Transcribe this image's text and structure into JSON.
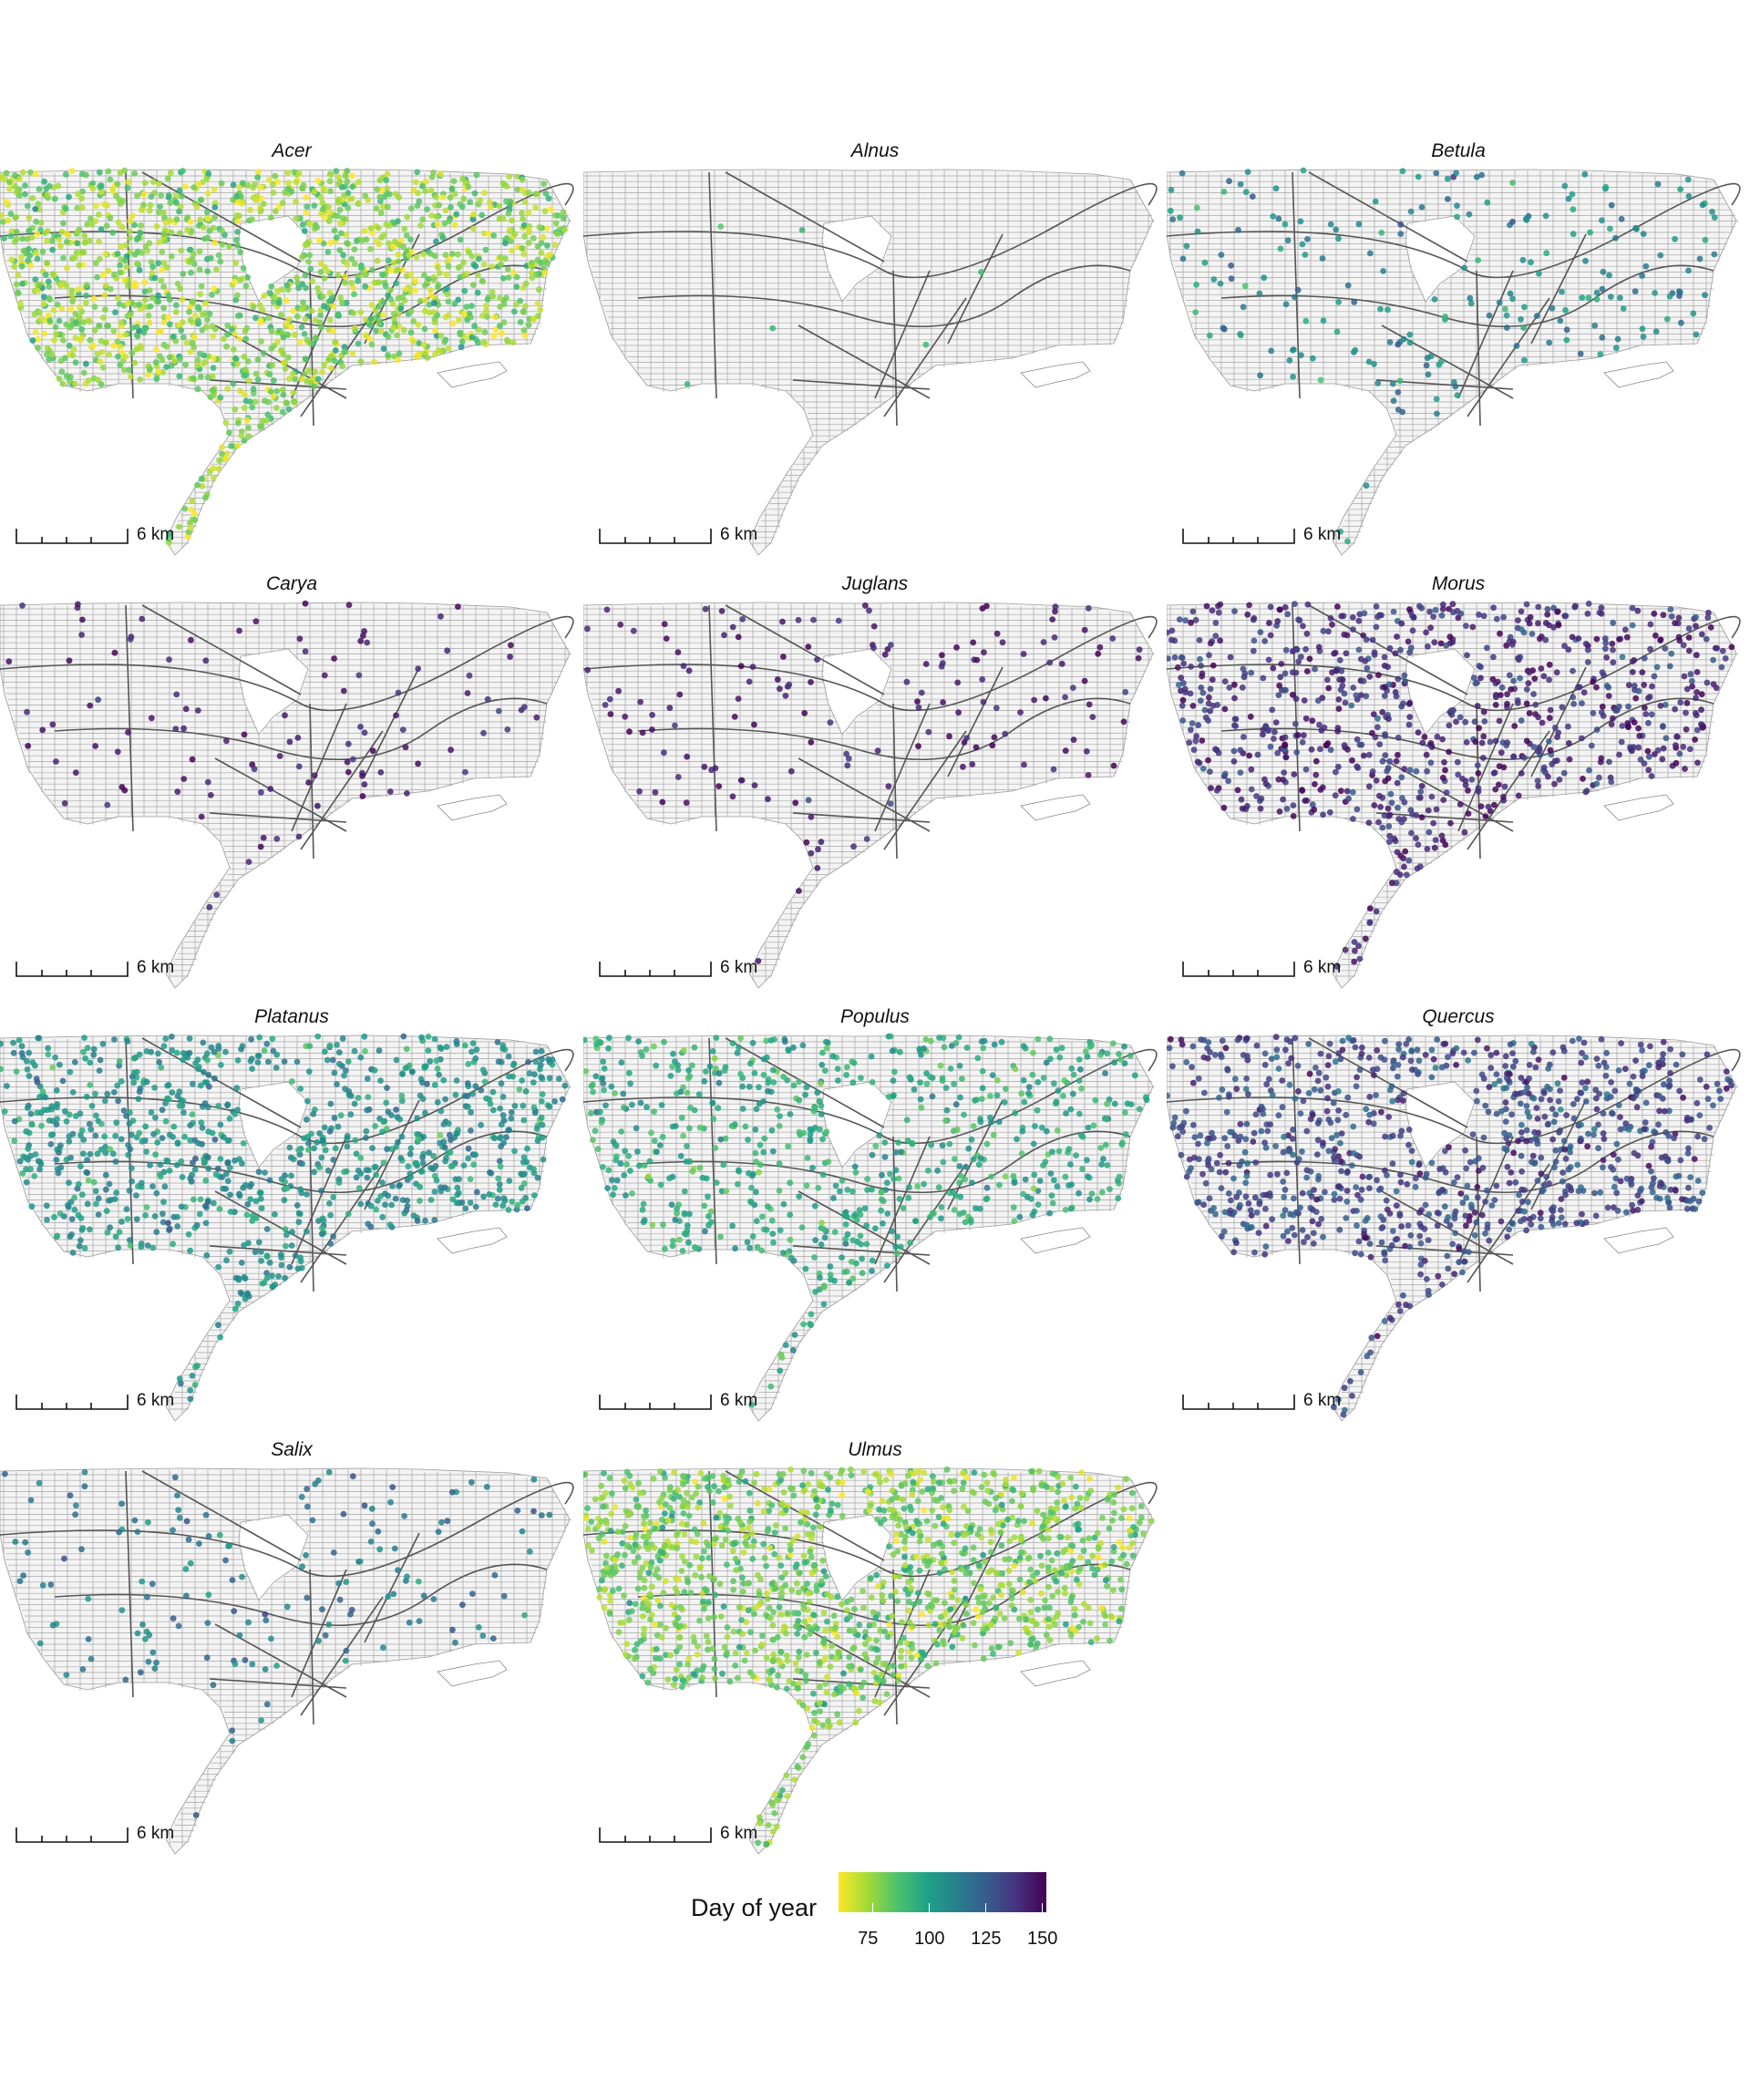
{
  "panels": [
    {
      "title": "Acer",
      "scale_label": "6 km",
      "doy": 76,
      "spread": 10,
      "density": 1.0
    },
    {
      "title": "Alnus",
      "scale_label": "6 km",
      "doy": 88,
      "spread": 4,
      "density": 0.004
    },
    {
      "title": "Betula",
      "scale_label": "6 km",
      "doy": 108,
      "spread": 10,
      "density": 0.14
    },
    {
      "title": "Carya",
      "scale_label": "6 km",
      "doy": 145,
      "spread": 5,
      "density": 0.07
    },
    {
      "title": "Juglans",
      "scale_label": "6 km",
      "doy": 146,
      "spread": 5,
      "density": 0.1
    },
    {
      "title": "Morus",
      "scale_label": "6 km",
      "doy": 140,
      "spread": 8,
      "density": 0.55
    },
    {
      "title": "Platanus",
      "scale_label": "6 km",
      "doy": 105,
      "spread": 8,
      "density": 0.6
    },
    {
      "title": "Populus",
      "scale_label": "6 km",
      "doy": 96,
      "spread": 8,
      "density": 0.45
    },
    {
      "title": "Quercus",
      "scale_label": "6 km",
      "doy": 132,
      "spread": 8,
      "density": 0.6
    },
    {
      "title": "Salix",
      "scale_label": "6 km",
      "doy": 115,
      "spread": 8,
      "density": 0.1
    },
    {
      "title": "Ulmus",
      "scale_label": "6 km",
      "doy": 80,
      "spread": 9,
      "density": 0.9
    }
  ],
  "legend": {
    "title": "Day of year",
    "min": 60,
    "max": 152,
    "ticks": [
      75,
      100,
      125,
      150
    ],
    "colors": [
      "#fde725",
      "#a0da39",
      "#4ac16d",
      "#1fa187",
      "#277f8e",
      "#365c8d",
      "#46327e",
      "#440154"
    ]
  }
}
